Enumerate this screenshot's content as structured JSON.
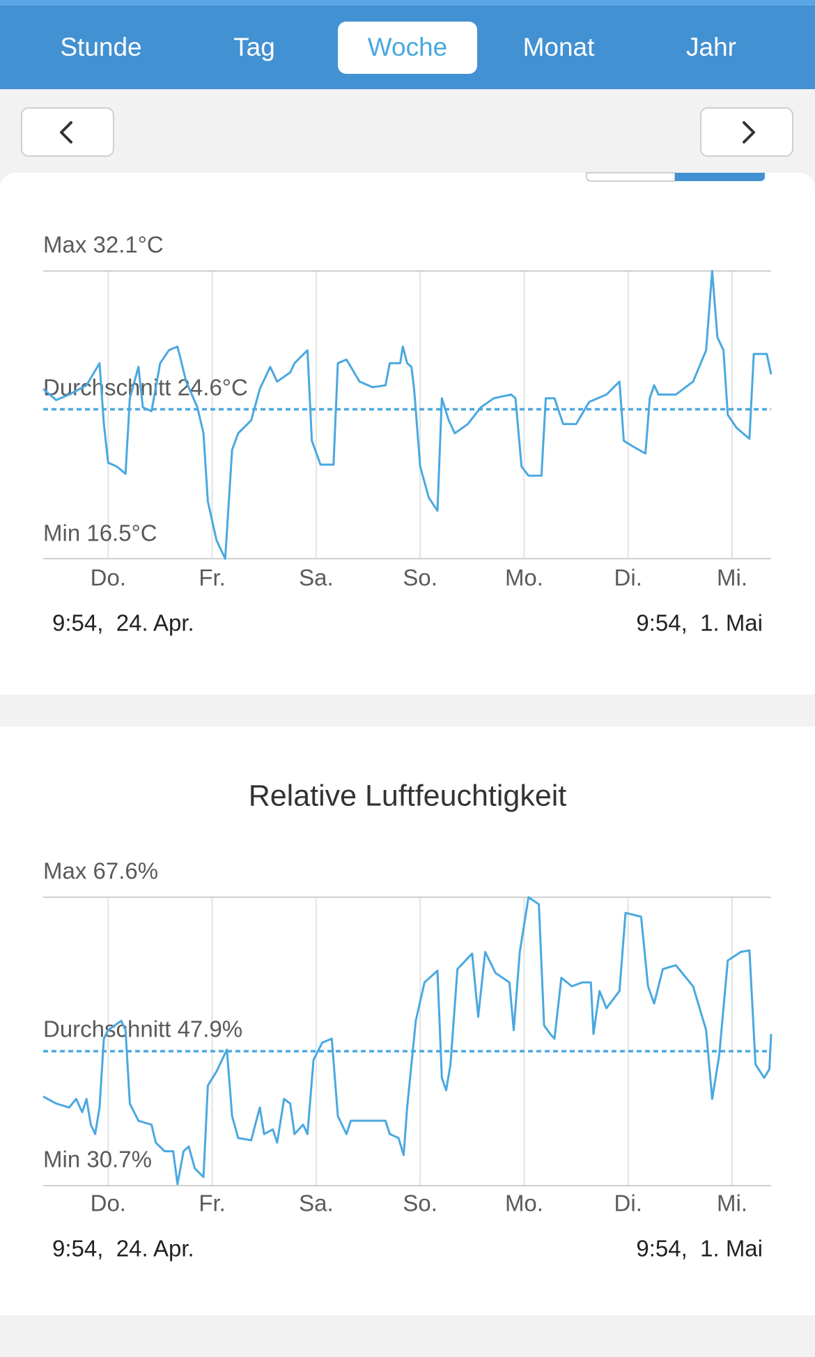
{
  "tabs": [
    "Stunde",
    "Tag",
    "Woche",
    "Monat",
    "Jahr"
  ],
  "selected_tab": 2,
  "chart_data": [
    {
      "type": "line",
      "color": "#4aa8e0",
      "max_label": "Max 32.1°C",
      "average_label": "Durchschnitt 24.6°C",
      "min_label": "Min 16.5°C",
      "average": 24.6,
      "start_label": "9:54,  24. Apr.",
      "end_label": "9:54,  1. Mai",
      "xlim": [
        0,
        168
      ],
      "ylim": [
        16.5,
        32.1
      ],
      "xticks": [
        {
          "value": 15,
          "label": "Do."
        },
        {
          "value": 39,
          "label": "Fr."
        },
        {
          "value": 63,
          "label": "Sa."
        },
        {
          "value": 87,
          "label": "So."
        },
        {
          "value": 111,
          "label": "Mo."
        },
        {
          "value": 135,
          "label": "Di."
        },
        {
          "value": 159,
          "label": "Mi."
        }
      ],
      "x": [
        0,
        3,
        6,
        10,
        13,
        14,
        15,
        17,
        19,
        20,
        22,
        23,
        25,
        27,
        29,
        31,
        33,
        35.6,
        37,
        38,
        40,
        42,
        43.6,
        45,
        48,
        50,
        52.4,
        54,
        57,
        58,
        61,
        62,
        64,
        67,
        68,
        70,
        73,
        76,
        79,
        80,
        82.4,
        83,
        84,
        85,
        85.6,
        87,
        89,
        91,
        92,
        93.6,
        95,
        98,
        101,
        104,
        108,
        109,
        110.4,
        112,
        115,
        116,
        118,
        120,
        123,
        126,
        130,
        133,
        134,
        136,
        139,
        140,
        141,
        142,
        146,
        150,
        153,
        154.4,
        155.6,
        157,
        158,
        160,
        163,
        164,
        167,
        168
      ],
      "values": [
        25.7,
        25.1,
        25.4,
        25.9,
        27.1,
        23.8,
        21.7,
        21.5,
        21.1,
        25.2,
        26.9,
        24.7,
        24.5,
        27.1,
        27.8,
        28.0,
        26.1,
        24.7,
        23.3,
        19.6,
        17.5,
        16.5,
        22.4,
        23.3,
        24.0,
        25.7,
        26.9,
        26.1,
        26.6,
        27.1,
        27.8,
        22.9,
        21.6,
        21.6,
        27.1,
        27.3,
        26.1,
        25.8,
        25.9,
        27.1,
        27.1,
        28.0,
        27.1,
        26.9,
        25.7,
        21.5,
        19.8,
        19.1,
        25.2,
        24.0,
        23.3,
        23.8,
        24.7,
        25.2,
        25.4,
        25.2,
        21.5,
        21.0,
        21.0,
        25.2,
        25.2,
        23.8,
        23.8,
        25.0,
        25.4,
        26.1,
        22.9,
        22.6,
        22.2,
        25.2,
        25.9,
        25.4,
        25.4,
        26.1,
        27.8,
        32.1,
        28.5,
        27.8,
        24.3,
        23.6,
        23.0,
        27.6,
        27.6,
        26.5
      ]
    },
    {
      "type": "line",
      "title": "Relative Luftfeuchtigkeit",
      "color": "#4aa8e0",
      "max_label": "Max 67.6%",
      "average_label": "Durchschnitt 47.9%",
      "min_label": "Min 30.7%",
      "average": 47.9,
      "start_label": "9:54,  24. Apr.",
      "end_label": "9:54,  1. Mai",
      "xlim": [
        0,
        168
      ],
      "ylim": [
        30.7,
        67.6
      ],
      "xticks": [
        {
          "value": 15,
          "label": "Do."
        },
        {
          "value": 39,
          "label": "Fr."
        },
        {
          "value": 63,
          "label": "Sa."
        },
        {
          "value": 87,
          "label": "So."
        },
        {
          "value": 111,
          "label": "Mo."
        },
        {
          "value": 135,
          "label": "Di."
        },
        {
          "value": 159,
          "label": "Mi."
        }
      ],
      "x": [
        0,
        3,
        6,
        7.6,
        9,
        10,
        11,
        12,
        13,
        14,
        15,
        18,
        19,
        20,
        22,
        25,
        26,
        28,
        30,
        31,
        32.4,
        33.6,
        35,
        37,
        38,
        40,
        42.4,
        43.6,
        45,
        48,
        50,
        51,
        53,
        54,
        55.6,
        57,
        58,
        60,
        61,
        62.4,
        64.4,
        66.6,
        68,
        70,
        71,
        74,
        79,
        80,
        82,
        83.2,
        84,
        86,
        88,
        91,
        92,
        93,
        94,
        95.6,
        99,
        100.4,
        102,
        104.4,
        107.6,
        108.6,
        110,
        112,
        114.4,
        115.6,
        117,
        118,
        119.6,
        122,
        124.4,
        126.4,
        127,
        128.4,
        130,
        133,
        134.4,
        138,
        139.6,
        141,
        143,
        146,
        150,
        153,
        154.4,
        156,
        158,
        161,
        163,
        164.4,
        166.4,
        167.6,
        168
      ],
      "values": [
        42.1,
        41.2,
        40.7,
        41.8,
        40.1,
        41.8,
        38.5,
        37.3,
        40.7,
        49.5,
        50.6,
        51.8,
        50.6,
        41.2,
        39.0,
        38.5,
        36.2,
        35.1,
        35.1,
        30.9,
        35.1,
        35.7,
        32.9,
        31.8,
        43.5,
        45.3,
        48.1,
        39.6,
        36.8,
        36.5,
        40.7,
        37.3,
        37.9,
        36.2,
        41.8,
        41.2,
        37.3,
        38.5,
        37.3,
        46.8,
        49.0,
        49.5,
        39.6,
        37.3,
        39.0,
        39.0,
        39.0,
        37.3,
        36.8,
        34.6,
        40.7,
        51.8,
        56.7,
        58.2,
        44.5,
        42.9,
        46.2,
        58.4,
        60.4,
        52.3,
        60.6,
        57.9,
        56.7,
        50.6,
        60.6,
        67.6,
        66.7,
        51.2,
        50.1,
        49.5,
        57.3,
        56.2,
        56.7,
        56.7,
        50.1,
        55.6,
        53.4,
        55.6,
        65.6,
        65.1,
        56.2,
        54.0,
        58.4,
        58.9,
        56.2,
        50.6,
        41.8,
        47.3,
        59.5,
        60.6,
        60.8,
        46.2,
        44.5,
        45.6,
        50.1
      ]
    }
  ]
}
